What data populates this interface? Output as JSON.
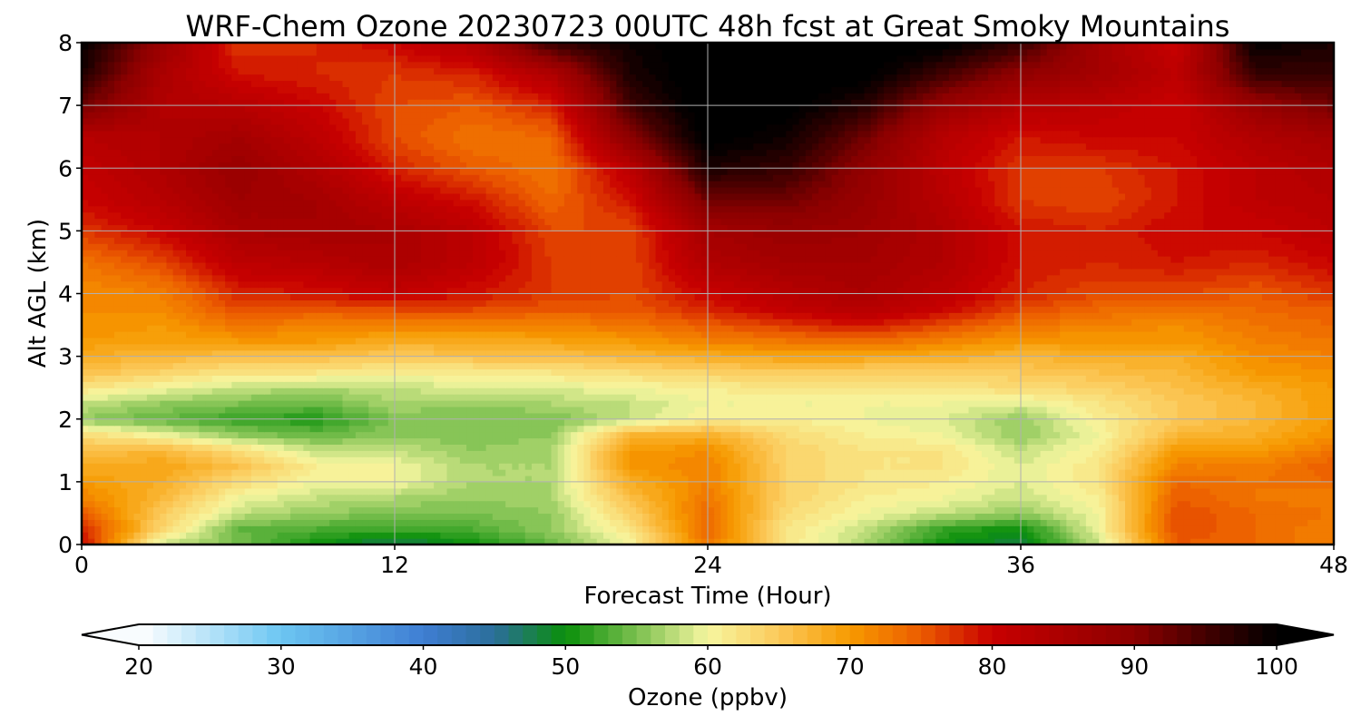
{
  "chart_data": {
    "type": "heatmap",
    "title": "WRF-Chem Ozone  20230723 00UTC 48h fcst at Great Smoky Mountains",
    "xlabel": "Forecast Time (Hour)",
    "ylabel": "Alt AGL (km)",
    "xlim": [
      0,
      48
    ],
    "ylim": [
      0,
      8
    ],
    "x_ticks": [
      "0",
      "12",
      "24",
      "36",
      "48"
    ],
    "y_ticks": [
      "0",
      "1",
      "2",
      "3",
      "4",
      "5",
      "6",
      "7",
      "8"
    ],
    "grid": true,
    "x_hours": [
      0,
      3,
      6,
      9,
      12,
      15,
      18,
      21,
      24,
      27,
      30,
      33,
      36,
      39,
      42,
      45,
      48
    ],
    "altitudes_km": [
      0,
      0.25,
      0.5,
      0.75,
      1,
      1.25,
      1.5,
      1.75,
      2,
      2.25,
      2.5,
      2.75,
      3,
      3.25,
      3.5,
      3.75,
      4,
      4.5,
      5,
      5.5,
      6,
      6.5,
      7,
      7.5,
      8
    ],
    "ozone_ppbv": [
      [
        80,
        58,
        55,
        50,
        47,
        50,
        54,
        60,
        73,
        62,
        57,
        50,
        48,
        58,
        75,
        74,
        72
      ],
      [
        78,
        64,
        54,
        53,
        52,
        53,
        56,
        62,
        74,
        62,
        58,
        52,
        50,
        60,
        76,
        74,
        72
      ],
      [
        75,
        65,
        58,
        56,
        55,
        55,
        56,
        64,
        74,
        63,
        60,
        58,
        56,
        60,
        76,
        74,
        73
      ],
      [
        72,
        67,
        60,
        58,
        57,
        56,
        57,
        66,
        73,
        64,
        61,
        60,
        58,
        61,
        75,
        73,
        72
      ],
      [
        70,
        68,
        63,
        60,
        60,
        57,
        57,
        68,
        72,
        64,
        62,
        61,
        59,
        62,
        74,
        73,
        74
      ],
      [
        68,
        69,
        66,
        61,
        60,
        57,
        57,
        70,
        72,
        64,
        62,
        62,
        59,
        62,
        72,
        72,
        75
      ],
      [
        66,
        67,
        63,
        58,
        58,
        56,
        57,
        70,
        71,
        64,
        62,
        62,
        58,
        61,
        70,
        70,
        73
      ],
      [
        63,
        60,
        56,
        54,
        56,
        55,
        56,
        67,
        68,
        63,
        61,
        60,
        56,
        60,
        67,
        68,
        71
      ],
      [
        56,
        54,
        52,
        51,
        55,
        55,
        55,
        58,
        61,
        61,
        60,
        59,
        56,
        61,
        65,
        67,
        70
      ],
      [
        58,
        56,
        55,
        54,
        57,
        56,
        57,
        58,
        60,
        60,
        60,
        60,
        59,
        62,
        65,
        67,
        70
      ],
      [
        62,
        60,
        58,
        57,
        58,
        59,
        59,
        60,
        61,
        62,
        62,
        62,
        63,
        64,
        66,
        68,
        70
      ],
      [
        66,
        64,
        62,
        62,
        61,
        61,
        62,
        63,
        64,
        65,
        64,
        64,
        65,
        66,
        67,
        70,
        71
      ],
      [
        68,
        67,
        66,
        66,
        65,
        66,
        66,
        67,
        68,
        69,
        69,
        68,
        67,
        68,
        68,
        71,
        72
      ],
      [
        70,
        69,
        70,
        70,
        68,
        68,
        69,
        70,
        72,
        73,
        74,
        72,
        70,
        70,
        70,
        72,
        73
      ],
      [
        71,
        70,
        73,
        72,
        72,
        72,
        72,
        73,
        75,
        77,
        79,
        76,
        73,
        72,
        71,
        73,
        74
      ],
      [
        71,
        71,
        76,
        75,
        76,
        76,
        75,
        75,
        78,
        81,
        83,
        80,
        76,
        74,
        73,
        74,
        75
      ],
      [
        71,
        72,
        78,
        79,
        81,
        79,
        77,
        76,
        80,
        83,
        85,
        82,
        78,
        76,
        76,
        75,
        77
      ],
      [
        73,
        76,
        82,
        83,
        85,
        82,
        77,
        76,
        84,
        86,
        86,
        84,
        79,
        78,
        79,
        78,
        80
      ],
      [
        77,
        80,
        85,
        86,
        85,
        82,
        76,
        76,
        86,
        88,
        87,
        84,
        79,
        78,
        80,
        80,
        82
      ],
      [
        80,
        83,
        87,
        86,
        82,
        79,
        74,
        79,
        92,
        92,
        88,
        83,
        77,
        76,
        79,
        82,
        83
      ],
      [
        81,
        84,
        88,
        84,
        78,
        75,
        73,
        82,
        98,
        96,
        89,
        82,
        77,
        77,
        79,
        82,
        84
      ],
      [
        83,
        84,
        86,
        82,
        76,
        73,
        74,
        90,
        101,
        99,
        92,
        83,
        79,
        80,
        80,
        84,
        86
      ],
      [
        92,
        84,
        83,
        80,
        76,
        75,
        78,
        95,
        102,
        101,
        97,
        88,
        83,
        82,
        80,
        88,
        92
      ],
      [
        98,
        85,
        79,
        78,
        77,
        78,
        84,
        98,
        102,
        102,
        101,
        95,
        89,
        86,
        82,
        96,
        96
      ],
      [
        100,
        88,
        77,
        78,
        80,
        84,
        96,
        99,
        102,
        102,
        102,
        101,
        96,
        86,
        80,
        100,
        98
      ]
    ],
    "colorbar": {
      "label": "Ozone  (ppbv)",
      "min": 20,
      "max": 100,
      "step": 1,
      "extend": "both",
      "ticks": [
        "20",
        "30",
        "40",
        "50",
        "60",
        "70",
        "80",
        "90",
        "100"
      ]
    },
    "color_anchors": [
      {
        "v": 20,
        "c": "#ffffff"
      },
      {
        "v": 30,
        "c": "#6cc6f2"
      },
      {
        "v": 40,
        "c": "#3f7ed3"
      },
      {
        "v": 45,
        "c": "#2b6e9a"
      },
      {
        "v": 50,
        "c": "#0a8f0a"
      },
      {
        "v": 55,
        "c": "#7bc04f"
      },
      {
        "v": 60,
        "c": "#f6f6a0"
      },
      {
        "v": 65,
        "c": "#fbc95a"
      },
      {
        "v": 70,
        "c": "#f79a00"
      },
      {
        "v": 75,
        "c": "#ec5c00"
      },
      {
        "v": 80,
        "c": "#c80000"
      },
      {
        "v": 90,
        "c": "#8c0000"
      },
      {
        "v": 95,
        "c": "#430000"
      },
      {
        "v": 100,
        "c": "#000000"
      }
    ]
  }
}
